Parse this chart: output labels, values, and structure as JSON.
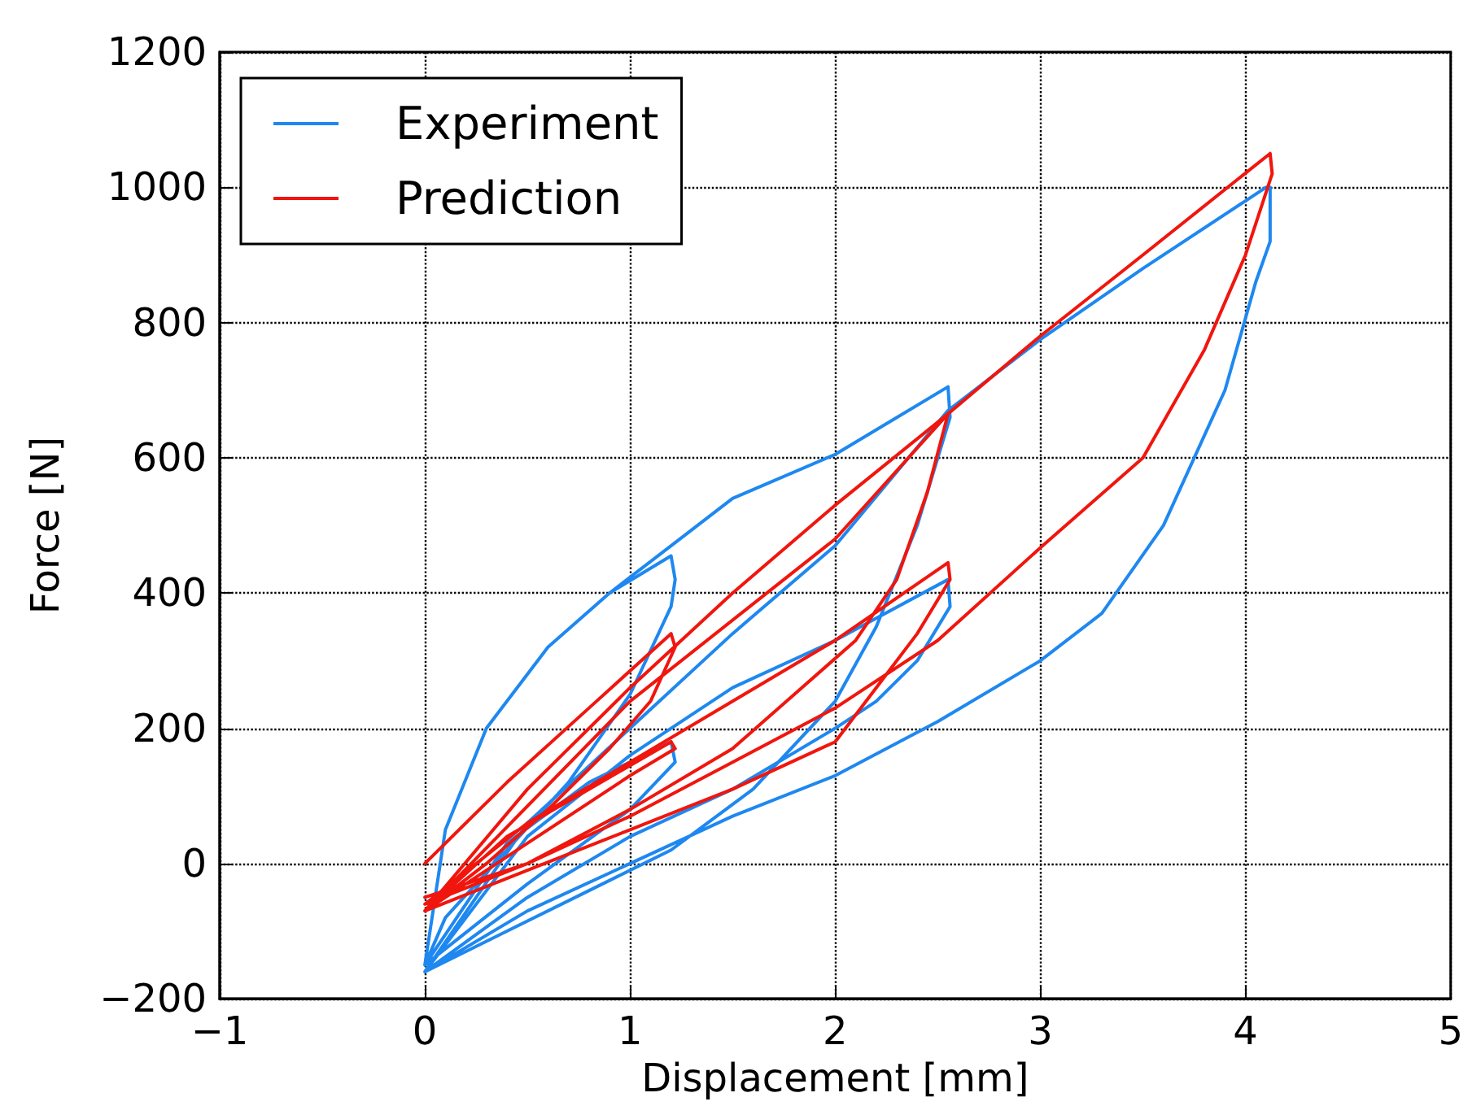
{
  "chart_data": {
    "type": "line",
    "xlabel": "Displacement [mm]",
    "ylabel": "Force [N]",
    "xlim": [
      -1,
      5
    ],
    "xticks": [
      {
        "value": -1,
        "label": "−1"
      },
      0,
      1,
      2,
      3,
      4,
      5
    ],
    "ylim": [
      -200,
      1200
    ],
    "yticks": [
      {
        "value": -200,
        "label": "−200"
      },
      0,
      200,
      400,
      600,
      800,
      1000,
      1200
    ],
    "grid": true,
    "legend": "top left",
    "marker": "none",
    "line_style": "solid",
    "series": [
      {
        "name": "Experiment",
        "color": "#1e88f0",
        "x": [
          0,
          0.1,
          0.3,
          0.6,
          0.9,
          1.2,
          1.22,
          1.2,
          1.0,
          0.7,
          0.4,
          0.1,
          0,
          0.4,
          0.8,
          1.2,
          1.22,
          1.0,
          0.5,
          0,
          0.1,
          0.3,
          0.6,
          0.9,
          1.2,
          1.5,
          2,
          2.55,
          2.56,
          2.4,
          2.2,
          2,
          1.6,
          1.2,
          0.8,
          0.4,
          0,
          0.5,
          1,
          1.5,
          2,
          2.55,
          2.56,
          2.4,
          2.2,
          2,
          1.5,
          1,
          0.5,
          0,
          0.5,
          1,
          1.5,
          2,
          2.55,
          3,
          3.5,
          4.1,
          4.12,
          4.12,
          4.05,
          3.9,
          3.6,
          3.3,
          3,
          2.5,
          2,
          1.5,
          1,
          0.5,
          0
        ],
        "values": [
          -150,
          50,
          200,
          320,
          400,
          455,
          420,
          380,
          250,
          120,
          20,
          -80,
          -150,
          30,
          120,
          180,
          150,
          80,
          -30,
          -150,
          50,
          200,
          320,
          400,
          470,
          540,
          605,
          705,
          660,
          500,
          350,
          240,
          110,
          20,
          -40,
          -100,
          -160,
          40,
          160,
          260,
          330,
          420,
          380,
          300,
          240,
          200,
          110,
          40,
          -50,
          -160,
          60,
          200,
          340,
          470,
          670,
          775,
          880,
          1000,
          1000,
          920,
          860,
          700,
          500,
          370,
          300,
          210,
          130,
          70,
          0,
          -70,
          -160
        ]
      },
      {
        "name": "Prediction",
        "color": "#f0160e",
        "x": [
          0,
          0.4,
          0.8,
          1.2,
          1.22,
          1.1,
          0.9,
          0.6,
          0.3,
          0,
          0.4,
          0.8,
          1.2,
          1.22,
          1.0,
          0.5,
          0,
          0.5,
          1,
          1.5,
          2,
          2.55,
          2.45,
          2.3,
          2.1,
          1.8,
          1.5,
          1,
          0.5,
          0,
          0.5,
          1,
          1.5,
          2,
          2.55,
          2.56,
          2.4,
          2.2,
          2,
          1.5,
          1,
          0.5,
          0,
          1,
          2,
          2.55,
          3,
          3.5,
          4.12,
          4.13,
          4.0,
          3.8,
          3.5,
          3,
          2.5,
          2,
          1.5,
          1,
          0.5,
          0
        ],
        "values": [
          0,
          120,
          230,
          340,
          320,
          240,
          170,
          80,
          0,
          -70,
          40,
          110,
          180,
          170,
          130,
          30,
          -70,
          110,
          260,
          400,
          530,
          665,
          550,
          420,
          330,
          250,
          170,
          80,
          0,
          -60,
          60,
          150,
          240,
          330,
          445,
          420,
          340,
          260,
          180,
          110,
          50,
          -10,
          -70,
          240,
          480,
          665,
          780,
          900,
          1050,
          1020,
          900,
          760,
          600,
          467,
          330,
          230,
          150,
          70,
          0,
          -50
        ]
      }
    ]
  }
}
